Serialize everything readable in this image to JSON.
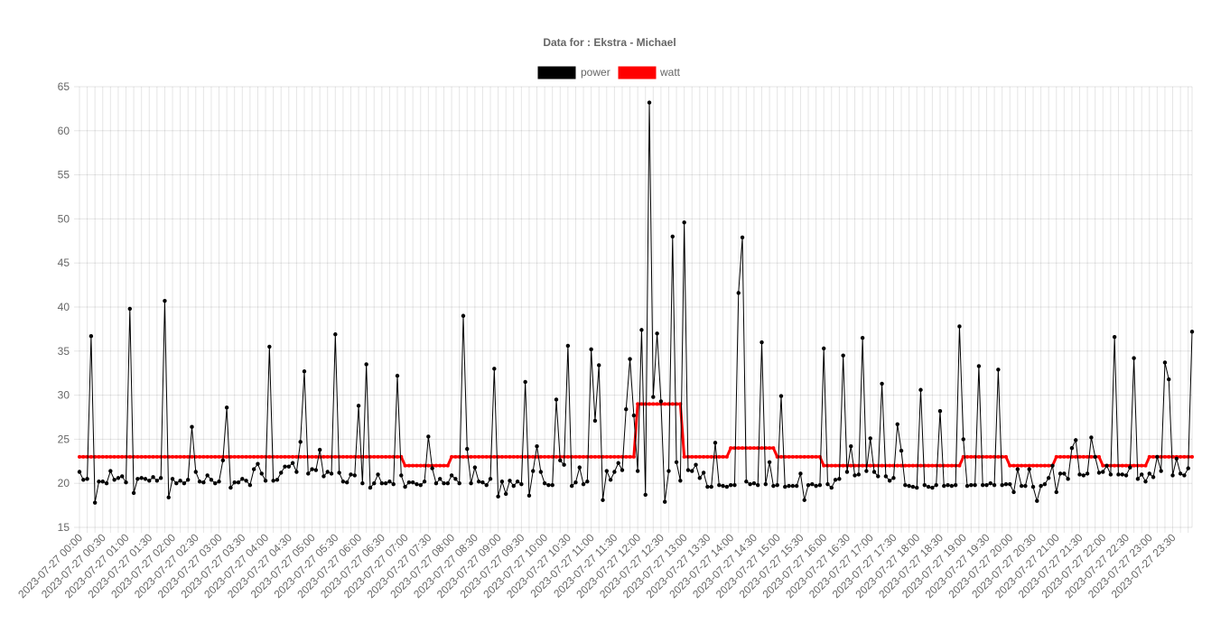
{
  "chart_data": {
    "type": "line",
    "title": "Data for : Ekstra - Michael",
    "legend_position": "top",
    "grid": true,
    "ylim": [
      15,
      65
    ],
    "y_ticks": [
      15,
      20,
      25,
      30,
      35,
      40,
      45,
      50,
      55,
      60,
      65
    ],
    "x_tick_labels": [
      "2023-07-27 00:00",
      "2023-07-27 00:30",
      "2023-07-27 01:00",
      "2023-07-27 01:30",
      "2023-07-27 02:00",
      "2023-07-27 02:30",
      "2023-07-27 03:00",
      "2023-07-27 03:30",
      "2023-07-27 04:00",
      "2023-07-27 04:30",
      "2023-07-27 05:00",
      "2023-07-27 05:30",
      "2023-07-27 06:00",
      "2023-07-27 06:30",
      "2023-07-27 07:00",
      "2023-07-27 07:30",
      "2023-07-27 08:00",
      "2023-07-27 08:30",
      "2023-07-27 09:00",
      "2023-07-27 09:30",
      "2023-07-27 10:00",
      "2023-07-27 10:30",
      "2023-07-27 11:00",
      "2023-07-27 11:30",
      "2023-07-27 12:00",
      "2023-07-27 12:30",
      "2023-07-27 13:00",
      "2023-07-27 13:30",
      "2023-07-27 14:00",
      "2023-07-27 14:30",
      "2023-07-27 15:00",
      "2023-07-27 15:30",
      "2023-07-27 16:00",
      "2023-07-27 16:30",
      "2023-07-27 17:00",
      "2023-07-27 17:30",
      "2023-07-27 18:00",
      "2023-07-27 18:30",
      "2023-07-27 19:00",
      "2023-07-27 19:30",
      "2023-07-27 20:00",
      "2023-07-27 20:30",
      "2023-07-27 21:00",
      "2023-07-27 21:30",
      "2023-07-27 22:00",
      "2023-07-27 22:30",
      "2023-07-27 23:00",
      "2023-07-27 23:30"
    ],
    "points_per_tick": 6,
    "x_start": "2023-07-27 00:00",
    "x_interval_minutes": 5,
    "series": [
      {
        "name": "power",
        "color": "#000000",
        "values": [
          21.3,
          20.4,
          20.5,
          36.7,
          17.8,
          20.2,
          20.2,
          20.0,
          21.4,
          20.4,
          20.6,
          20.8,
          20.1,
          39.8,
          18.9,
          20.5,
          20.6,
          20.5,
          20.3,
          20.7,
          20.3,
          20.6,
          40.7,
          18.4,
          20.5,
          20.0,
          20.3,
          20.0,
          20.4,
          26.4,
          21.3,
          20.2,
          20.1,
          20.9,
          20.4,
          20.0,
          20.2,
          22.6,
          28.6,
          19.5,
          20.1,
          20.1,
          20.5,
          20.3,
          19.8,
          21.6,
          22.2,
          21.1,
          20.3,
          35.5,
          20.3,
          20.4,
          21.2,
          21.9,
          21.9,
          22.3,
          21.3,
          24.7,
          32.7,
          21.1,
          21.6,
          21.5,
          23.8,
          20.8,
          21.3,
          21.1,
          36.9,
          21.2,
          20.2,
          20.1,
          21.0,
          20.9,
          28.8,
          20.0,
          33.5,
          19.5,
          20.0,
          21.0,
          20.0,
          20.0,
          20.2,
          19.9,
          32.2,
          20.9,
          19.6,
          20.1,
          20.1,
          19.9,
          19.8,
          20.2,
          25.3,
          21.7,
          20.0,
          20.5,
          20.0,
          20.0,
          20.9,
          20.5,
          20.0,
          39.0,
          23.9,
          20.0,
          21.8,
          20.2,
          20.1,
          19.8,
          20.5,
          33.0,
          18.5,
          20.2,
          18.8,
          20.3,
          19.7,
          20.2,
          19.9,
          31.5,
          18.6,
          21.4,
          24.2,
          21.3,
          20.0,
          19.8,
          19.8,
          29.5,
          22.6,
          22.1,
          35.6,
          19.7,
          20.1,
          21.8,
          19.9,
          20.2,
          35.2,
          27.1,
          33.4,
          18.1,
          21.4,
          20.4,
          21.3,
          22.3,
          21.5,
          28.4,
          34.1,
          27.7,
          21.4,
          37.4,
          18.7,
          63.2,
          29.8,
          37.0,
          29.3,
          17.9,
          21.4,
          48.0,
          22.4,
          20.3,
          49.6,
          21.5,
          21.4,
          22.1,
          20.6,
          21.2,
          19.6,
          19.6,
          24.6,
          19.8,
          19.7,
          19.6,
          19.8,
          19.8,
          41.6,
          47.9,
          20.2,
          19.9,
          20.0,
          19.8,
          36.0,
          19.9,
          22.4,
          19.7,
          19.8,
          29.9,
          19.6,
          19.7,
          19.7,
          19.7,
          21.1,
          18.1,
          19.8,
          19.9,
          19.7,
          19.8,
          35.3,
          19.9,
          19.5,
          20.4,
          20.5,
          34.5,
          21.3,
          24.2,
          20.9,
          21.0,
          36.5,
          21.4,
          25.1,
          21.3,
          20.8,
          31.3,
          20.8,
          20.3,
          20.6,
          26.7,
          23.7,
          19.8,
          19.7,
          19.6,
          19.5,
          30.6,
          19.8,
          19.6,
          19.5,
          19.8,
          28.2,
          19.7,
          19.8,
          19.7,
          19.8,
          37.8,
          25.0,
          19.7,
          19.8,
          19.8,
          33.3,
          19.8,
          19.8,
          20.0,
          19.8,
          32.9,
          19.8,
          19.9,
          19.9,
          19.0,
          21.6,
          19.7,
          19.7,
          21.6,
          19.6,
          18.0,
          19.7,
          19.9,
          20.6,
          22.0,
          19.0,
          21.1,
          21.1,
          20.5,
          24.0,
          24.9,
          21.0,
          20.9,
          21.1,
          25.2,
          23.0,
          21.2,
          21.3,
          22.0,
          21.0,
          36.6,
          21.0,
          21.0,
          20.9,
          21.8,
          34.2,
          20.5,
          21.0,
          20.2,
          21.1,
          20.7,
          23.0,
          21.4,
          33.7,
          31.8,
          20.9,
          22.8,
          21.1,
          20.9,
          21.7,
          37.2
        ]
      },
      {
        "name": "watt",
        "color": "#ff0000",
        "segments": [
          {
            "from": 0,
            "to": 83,
            "value": 23
          },
          {
            "from": 84,
            "to": 95,
            "value": 22
          },
          {
            "from": 96,
            "to": 143,
            "value": 23
          },
          {
            "from": 144,
            "to": 155,
            "value": 29
          },
          {
            "from": 156,
            "to": 167,
            "value": 23
          },
          {
            "from": 168,
            "to": 179,
            "value": 24
          },
          {
            "from": 180,
            "to": 191,
            "value": 23
          },
          {
            "from": 192,
            "to": 227,
            "value": 22
          },
          {
            "from": 228,
            "to": 239,
            "value": 23
          },
          {
            "from": 240,
            "to": 251,
            "value": 22
          },
          {
            "from": 252,
            "to": 263,
            "value": 23
          },
          {
            "from": 264,
            "to": 275,
            "value": 22
          },
          {
            "from": 276,
            "to": 287,
            "value": 23
          }
        ]
      }
    ]
  }
}
